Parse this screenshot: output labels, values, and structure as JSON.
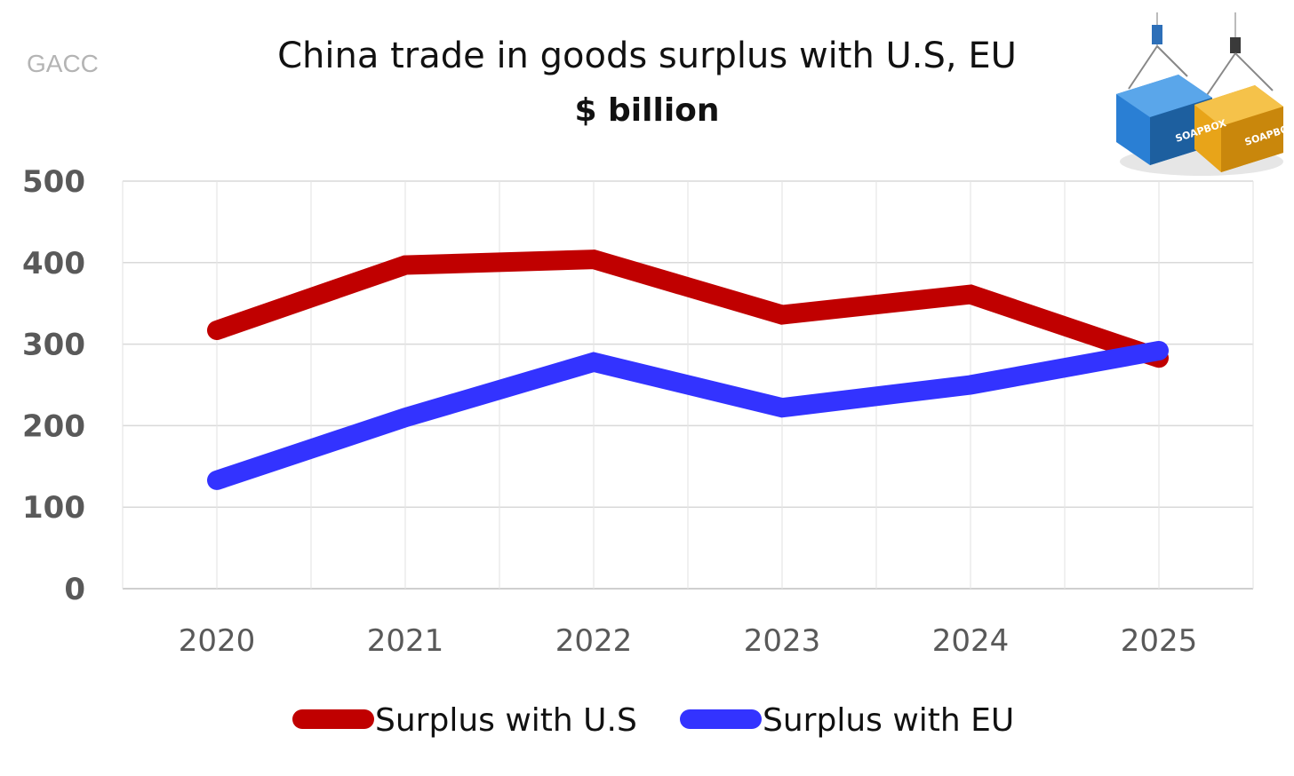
{
  "source_label": "GACC",
  "logo_text": "SOAPBOX",
  "colors": {
    "us": "#c00000",
    "eu": "#3333ff",
    "grid": "#d9d9d9",
    "axis_text": "#595959"
  },
  "chart_data": {
    "type": "line",
    "title": "China trade in goods surplus with U.S, EU",
    "subtitle": "$ billion",
    "xlabel": "",
    "ylabel": "",
    "categories": [
      "2020",
      "2021",
      "2022",
      "2023",
      "2024",
      "2025"
    ],
    "ylim": [
      0,
      500
    ],
    "yticks": [
      0,
      100,
      200,
      300,
      400,
      500
    ],
    "grid": true,
    "legend_position": "bottom",
    "series": [
      {
        "name": "Surplus with U.S",
        "color": "#c00000",
        "values": [
          317,
          397,
          404,
          336,
          361,
          283
        ]
      },
      {
        "name": "Surplus with EU",
        "color": "#3333ff",
        "values": [
          133,
          210,
          278,
          222,
          250,
          292
        ]
      }
    ]
  }
}
